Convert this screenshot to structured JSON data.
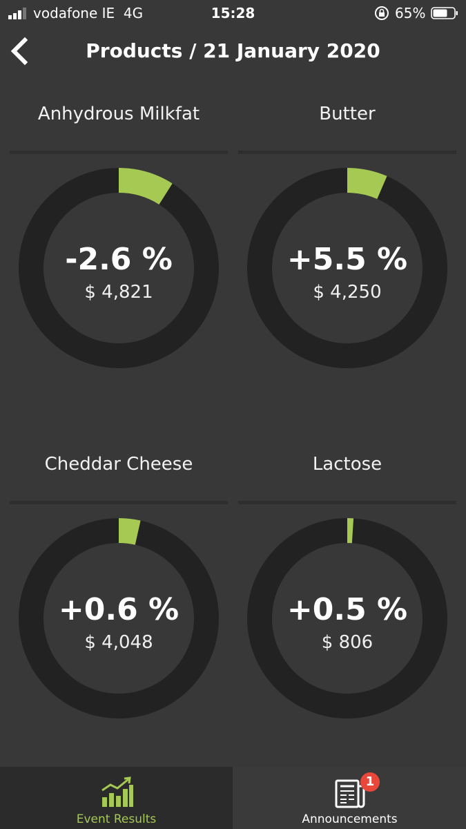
{
  "status": {
    "carrier": "vodafone IE",
    "network": "4G",
    "time": "15:28",
    "battery": "65%"
  },
  "header": {
    "title": "Products / 21 January 2020"
  },
  "products": [
    {
      "name": "Anhydrous Milkfat",
      "change": "-2.6 %",
      "price": "$ 4,821",
      "fraction": 0.09
    },
    {
      "name": "Butter",
      "change": "+5.5 %",
      "price": "$ 4,250",
      "fraction": 0.065
    },
    {
      "name": "Cheddar Cheese",
      "change": "+0.6 %",
      "price": "$ 4,048",
      "fraction": 0.035
    },
    {
      "name": "Lactose",
      "change": "+0.5 %",
      "price": "$ 806",
      "fraction": 0.01
    }
  ],
  "tabs": [
    {
      "label": "Event Results",
      "icon": "bar-chart-growth-icon",
      "active": true
    },
    {
      "label": "Announcements",
      "icon": "newspaper-icon",
      "badge": "1"
    }
  ],
  "colors": {
    "accent": "#a6c954",
    "track": "#222222",
    "background": "#383838",
    "badge": "#e8473a"
  }
}
